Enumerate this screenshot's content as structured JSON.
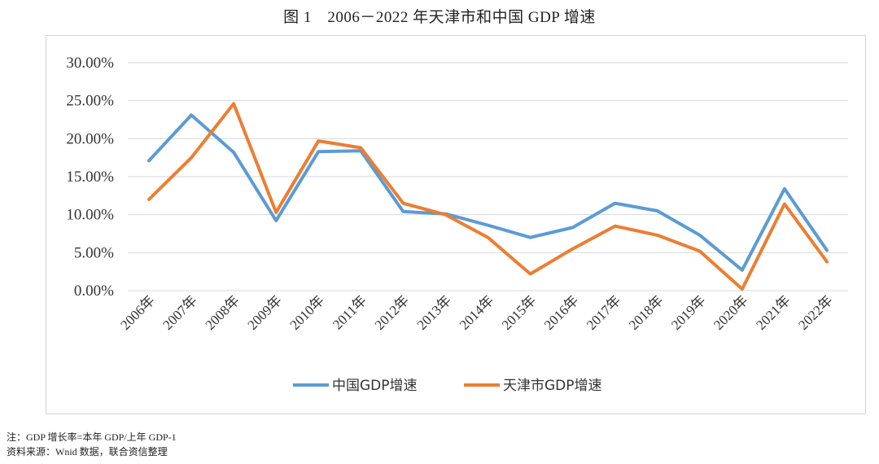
{
  "chart_data": {
    "type": "line",
    "title": "图 1　2006－2022 年天津市和中国 GDP 增速",
    "categories": [
      "2006年",
      "2007年",
      "2008年",
      "2009年",
      "2010年",
      "2011年",
      "2012年",
      "2013年",
      "2014年",
      "2015年",
      "2016年",
      "2017年",
      "2018年",
      "2019年",
      "2020年",
      "2021年",
      "2022年"
    ],
    "series": [
      {
        "name": "中国GDP增速",
        "color": "#5B9BD5",
        "values": [
          17.1,
          23.1,
          18.2,
          9.2,
          18.3,
          18.4,
          10.4,
          10.1,
          8.6,
          7.0,
          8.3,
          11.5,
          10.5,
          7.3,
          2.7,
          13.4,
          5.3
        ]
      },
      {
        "name": "天津市GDP增速",
        "color": "#ED7D31",
        "values": [
          12.0,
          17.5,
          24.6,
          10.3,
          19.7,
          18.8,
          11.5,
          10.0,
          7.0,
          2.2,
          5.5,
          8.5,
          7.3,
          5.2,
          0.2,
          11.4,
          3.8
        ]
      }
    ],
    "y_tick_labels": [
      "0.00%",
      "5.00%",
      "10.00%",
      "15.00%",
      "20.00%",
      "25.00%",
      "30.00%"
    ],
    "ylim": [
      0,
      30
    ],
    "grid": true,
    "legend_position": "bottom"
  },
  "notes": {
    "formula": "注：GDP 增长率=本年 GDP/上年 GDP-1",
    "source": "资料来源：Wnid 数据，联合资信整理"
  }
}
